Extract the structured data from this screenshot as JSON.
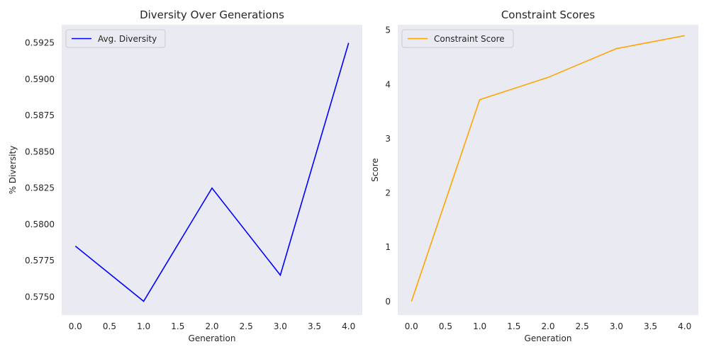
{
  "chart_data": [
    {
      "type": "line",
      "title": "Diversity Over Generations",
      "xlabel": "Generation",
      "ylabel": "% Diversity",
      "xlim": [
        -0.2,
        4.2
      ],
      "ylim": [
        0.57375,
        0.59375
      ],
      "xticks": [
        0.0,
        0.5,
        1.0,
        1.5,
        2.0,
        2.5,
        3.0,
        3.5,
        4.0
      ],
      "xtick_labels": [
        "0.0",
        "0.5",
        "1.0",
        "1.5",
        "2.0",
        "2.5",
        "3.0",
        "3.5",
        "4.0"
      ],
      "yticks": [
        0.575,
        0.5775,
        0.58,
        0.5825,
        0.585,
        0.5875,
        0.59,
        0.5925
      ],
      "ytick_labels": [
        "0.5750",
        "0.5775",
        "0.5800",
        "0.5825",
        "0.5850",
        "0.5875",
        "0.5900",
        "0.5925"
      ],
      "grid": false,
      "legend": "top-left",
      "series": [
        {
          "name": "Avg. Diversity",
          "color": "#0000ff",
          "x": [
            0,
            1,
            2,
            3,
            4
          ],
          "y": [
            0.5785,
            0.5747,
            0.5825,
            0.5765,
            0.5925
          ]
        }
      ]
    },
    {
      "type": "line",
      "title": "Constraint Scores",
      "xlabel": "Generation",
      "ylabel": "Score",
      "xlim": [
        -0.2,
        4.2
      ],
      "ylim": [
        -0.25,
        5.1
      ],
      "xticks": [
        0.0,
        0.5,
        1.0,
        1.5,
        2.0,
        2.5,
        3.0,
        3.5,
        4.0
      ],
      "xtick_labels": [
        "0.0",
        "0.5",
        "1.0",
        "1.5",
        "2.0",
        "2.5",
        "3.0",
        "3.5",
        "4.0"
      ],
      "yticks": [
        0,
        1,
        2,
        3,
        4,
        5
      ],
      "ytick_labels": [
        "0",
        "1",
        "2",
        "3",
        "4",
        "5"
      ],
      "grid": false,
      "legend": "top-left",
      "series": [
        {
          "name": "Constraint Score",
          "color": "#ffa500",
          "x": [
            0,
            1,
            2,
            3,
            4
          ],
          "y": [
            0.0,
            3.72,
            4.13,
            4.66,
            4.9
          ]
        }
      ]
    }
  ]
}
